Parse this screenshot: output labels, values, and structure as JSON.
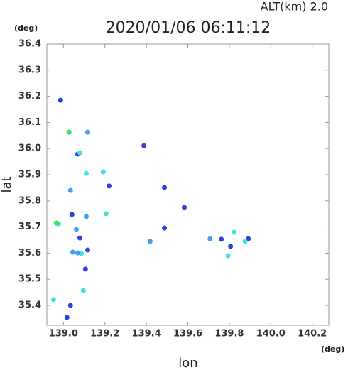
{
  "chart_data": {
    "type": "scatter",
    "alt_label": "ALT(km)  2.0",
    "title": "2020/01/06 06:11:12",
    "y_unit": "(deg)",
    "x_unit": "(deg)",
    "ylabel": "lat",
    "xlabel": "lon",
    "xlim": [
      138.92,
      140.28
    ],
    "ylim": [
      35.324,
      36.4
    ],
    "xticks": [
      {
        "value": 139.0,
        "label": "139.0"
      },
      139.2,
      139.4,
      139.6,
      139.8,
      {
        "value": 140.0,
        "label": "140.0"
      },
      140.2
    ],
    "yticks": [
      36.4,
      36.3,
      36.2,
      36.1,
      {
        "value": 36.0,
        "label": "36.0"
      },
      35.9,
      35.8,
      35.7,
      35.6,
      35.5,
      35.4
    ],
    "series": [
      {
        "color": "#3040e0",
        "x": [
          138.986,
          139.034,
          139.017,
          139.106,
          139.079,
          139.117,
          139.388,
          139.487,
          139.487,
          139.806,
          139.892,
          139.069,
          139.041,
          139.762,
          139.583,
          139.22
        ],
        "y": [
          36.185,
          35.4,
          35.354,
          35.539,
          35.658,
          35.612,
          36.011,
          35.851,
          35.696,
          35.626,
          35.655,
          35.979,
          35.748,
          35.653,
          35.775,
          35.857
        ]
      },
      {
        "color": "#40e0e0",
        "x": [
          138.952,
          138.976,
          139.079,
          139.11,
          139.192,
          139.823,
          139.876,
          139.794,
          139.086,
          139.096,
          139.206
        ],
        "y": [
          35.422,
          35.712,
          35.984,
          35.905,
          35.911,
          35.68,
          35.645,
          35.59,
          35.598,
          35.457,
          35.751
        ]
      },
      {
        "color": "#40e060",
        "x": [
          139.027,
          138.966
        ],
        "y": [
          36.063,
          35.715
        ]
      },
      {
        "color": "#40a0f0",
        "x": [
          139.045,
          139.11,
          139.707,
          139.117,
          139.069,
          139.418,
          139.062,
          139.034
        ],
        "y": [
          35.604,
          35.74,
          35.655,
          36.063,
          35.601,
          35.645,
          35.691,
          35.84
        ]
      }
    ]
  }
}
